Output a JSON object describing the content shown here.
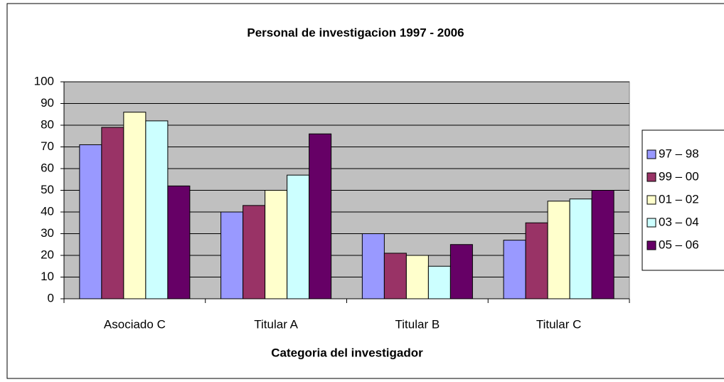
{
  "chart_data": {
    "type": "bar",
    "title": "Personal de investigacion 1997 - 2006",
    "x_label": "Categoria del investigador",
    "categories": [
      "Asociado C",
      "Titular A",
      "Titular B",
      "Titular C"
    ],
    "series": [
      {
        "name": "97 – 98",
        "color": "#9999ff",
        "values": [
          71,
          40,
          30,
          27
        ]
      },
      {
        "name": "99 – 00",
        "color": "#993366",
        "values": [
          79,
          43,
          21,
          35
        ]
      },
      {
        "name": "01 – 02",
        "color": "#ffffcc",
        "values": [
          86,
          50,
          20,
          45
        ]
      },
      {
        "name": "03 – 04",
        "color": "#ccffff",
        "values": [
          82,
          57,
          15,
          46
        ]
      },
      {
        "name": "05 – 06",
        "color": "#660066",
        "values": [
          52,
          76,
          25,
          50
        ]
      }
    ],
    "ylim": [
      0,
      100
    ],
    "yticks": [
      0,
      10,
      20,
      30,
      40,
      50,
      60,
      70,
      80,
      90,
      100
    ],
    "grid": true,
    "legend": "right"
  }
}
